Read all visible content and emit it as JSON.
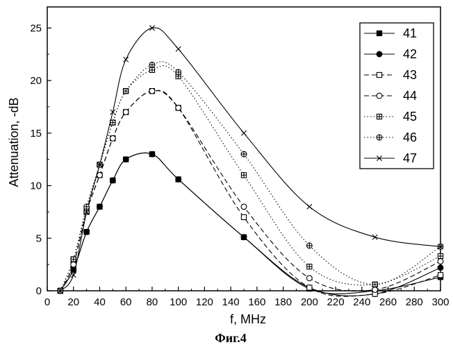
{
  "chart_data": {
    "type": "line",
    "xlabel": "f, MHz",
    "ylabel": "Attenuation, -dB",
    "xlim": [
      0,
      300
    ],
    "ylim": [
      0,
      27
    ],
    "xticks": [
      0,
      20,
      40,
      60,
      80,
      100,
      120,
      140,
      160,
      180,
      200,
      220,
      240,
      260,
      280,
      300
    ],
    "yticks": [
      0,
      5,
      10,
      15,
      20,
      25
    ],
    "grid": false,
    "legend_position": "top-right",
    "caption": "Фиг.4",
    "series": [
      {
        "name": "41",
        "line_style": "solid",
        "marker": "filled-square",
        "points": [
          [
            10,
            0
          ],
          [
            20,
            2
          ],
          [
            30,
            5.6
          ],
          [
            40,
            8.0
          ],
          [
            50,
            10.5
          ],
          [
            60,
            12.5
          ],
          [
            80,
            13.0
          ],
          [
            100,
            10.6
          ],
          [
            150,
            5.1
          ],
          [
            200,
            0.2
          ],
          [
            250,
            0.0
          ],
          [
            300,
            1.3
          ]
        ]
      },
      {
        "name": "42",
        "line_style": "solid",
        "marker": "filled-circle",
        "points": [
          [
            10,
            0
          ],
          [
            20,
            2
          ],
          [
            30,
            5.6
          ],
          [
            40,
            8.0
          ],
          [
            50,
            10.5
          ],
          [
            60,
            12.5
          ],
          [
            80,
            13.0
          ],
          [
            100,
            10.6
          ],
          [
            150,
            5.1
          ],
          [
            200,
            0.3
          ],
          [
            250,
            -0.3
          ],
          [
            300,
            2.2
          ]
        ]
      },
      {
        "name": "43",
        "line_style": "dashed",
        "marker": "open-square",
        "points": [
          [
            10,
            0
          ],
          [
            20,
            2.5
          ],
          [
            30,
            7.5
          ],
          [
            40,
            11.0
          ],
          [
            50,
            14.5
          ],
          [
            60,
            17.0
          ],
          [
            80,
            19.0
          ],
          [
            100,
            17.4
          ],
          [
            150,
            7.0
          ],
          [
            200,
            0.3
          ],
          [
            250,
            -0.3
          ],
          [
            300,
            1.5
          ]
        ]
      },
      {
        "name": "44",
        "line_style": "dashed",
        "marker": "open-circle",
        "points": [
          [
            10,
            0
          ],
          [
            20,
            2.5
          ],
          [
            30,
            7.5
          ],
          [
            40,
            11.0
          ],
          [
            50,
            14.5
          ],
          [
            60,
            17.0
          ],
          [
            80,
            19.0
          ],
          [
            100,
            17.4
          ],
          [
            150,
            8.0
          ],
          [
            200,
            1.2
          ],
          [
            250,
            0.1
          ],
          [
            300,
            2.8
          ]
        ]
      },
      {
        "name": "45",
        "line_style": "dotted",
        "marker": "crossed-square",
        "points": [
          [
            10,
            0
          ],
          [
            20,
            3.0
          ],
          [
            30,
            7.6
          ],
          [
            40,
            12.0
          ],
          [
            50,
            16.0
          ],
          [
            60,
            19.0
          ],
          [
            80,
            21.0
          ],
          [
            100,
            20.4
          ],
          [
            150,
            11.0
          ],
          [
            200,
            2.3
          ],
          [
            250,
            0.6
          ],
          [
            300,
            3.3
          ]
        ]
      },
      {
        "name": "46",
        "line_style": "dotted",
        "marker": "crossed-circle",
        "points": [
          [
            10,
            0
          ],
          [
            20,
            3.0
          ],
          [
            30,
            8.0
          ],
          [
            40,
            12.0
          ],
          [
            50,
            16.0
          ],
          [
            60,
            19.0
          ],
          [
            80,
            21.5
          ],
          [
            100,
            20.8
          ],
          [
            150,
            13.0
          ],
          [
            200,
            4.3
          ],
          [
            250,
            0.6
          ],
          [
            300,
            4.2
          ]
        ]
      },
      {
        "name": "47",
        "line_style": "solid",
        "marker": "x",
        "points": [
          [
            10,
            0
          ],
          [
            20,
            1.5
          ],
          [
            30,
            7.5
          ],
          [
            40,
            12.0
          ],
          [
            50,
            17.0
          ],
          [
            60,
            22.0
          ],
          [
            80,
            25.0
          ],
          [
            100,
            23.0
          ],
          [
            150,
            15.0
          ],
          [
            200,
            8.0
          ],
          [
            250,
            5.1
          ],
          [
            300,
            4.2
          ]
        ]
      }
    ]
  }
}
